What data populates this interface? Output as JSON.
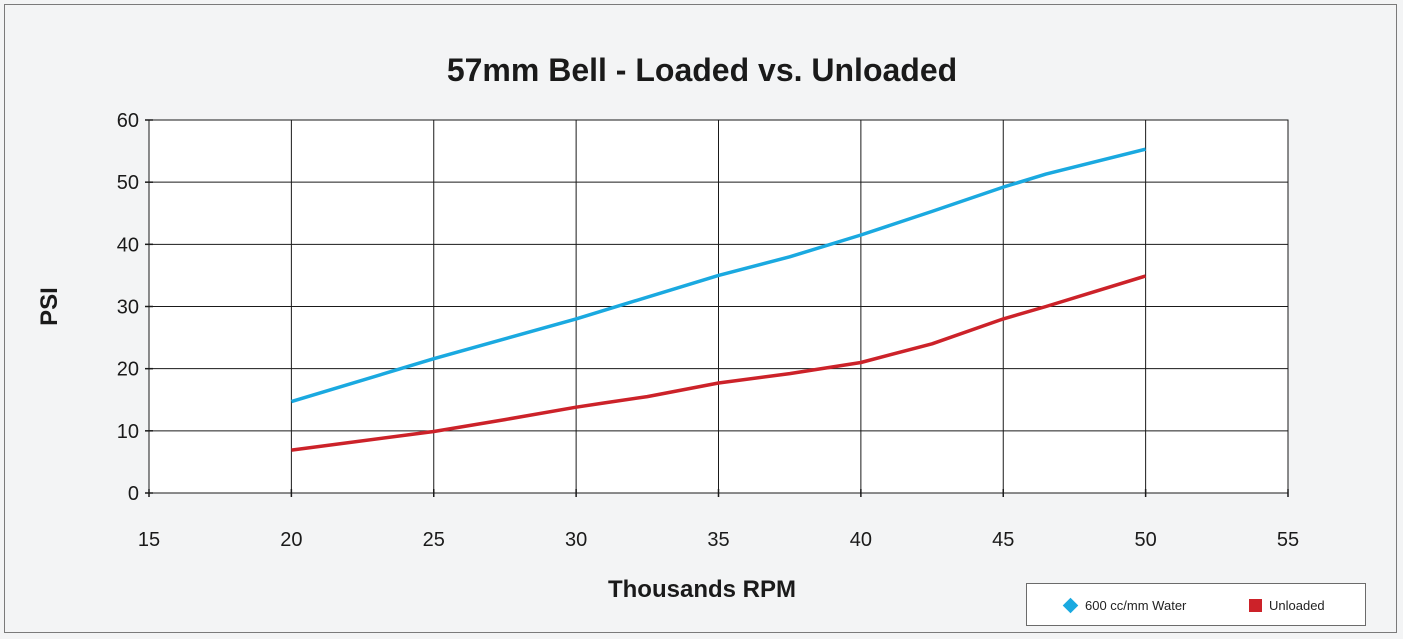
{
  "chart_data": {
    "type": "line",
    "title": "57mm Bell - Loaded vs. Unloaded",
    "xlabel": "Thousands RPM",
    "ylabel": "PSI",
    "xlim": [
      15,
      55
    ],
    "ylim": [
      0,
      60
    ],
    "x_ticks": [
      15,
      20,
      25,
      30,
      35,
      40,
      45,
      50,
      55
    ],
    "y_ticks": [
      0,
      10,
      20,
      30,
      40,
      50,
      60
    ],
    "grid": true,
    "legend_position": "bottom-right",
    "series": [
      {
        "name": "600 cc/mm Water",
        "color": "#1aa9e0",
        "marker": "diamond",
        "x": [
          20,
          25,
          30,
          35,
          37.5,
          40,
          42.5,
          45,
          46.5,
          50
        ],
        "y": [
          14.7,
          21.6,
          28,
          35,
          38,
          41.5,
          45.3,
          49.2,
          51.3,
          55.3
        ]
      },
      {
        "name": "Unloaded",
        "color": "#cc2229",
        "marker": "square",
        "x": [
          20,
          25,
          27.5,
          30,
          31,
          32.5,
          35,
          37.5,
          40,
          42.5,
          45,
          46.5,
          48,
          50
        ],
        "y": [
          6.9,
          9.9,
          11.8,
          13.8,
          14.5,
          15.5,
          17.7,
          19.2,
          21,
          24,
          28,
          30,
          32.1,
          34.9
        ]
      }
    ]
  }
}
